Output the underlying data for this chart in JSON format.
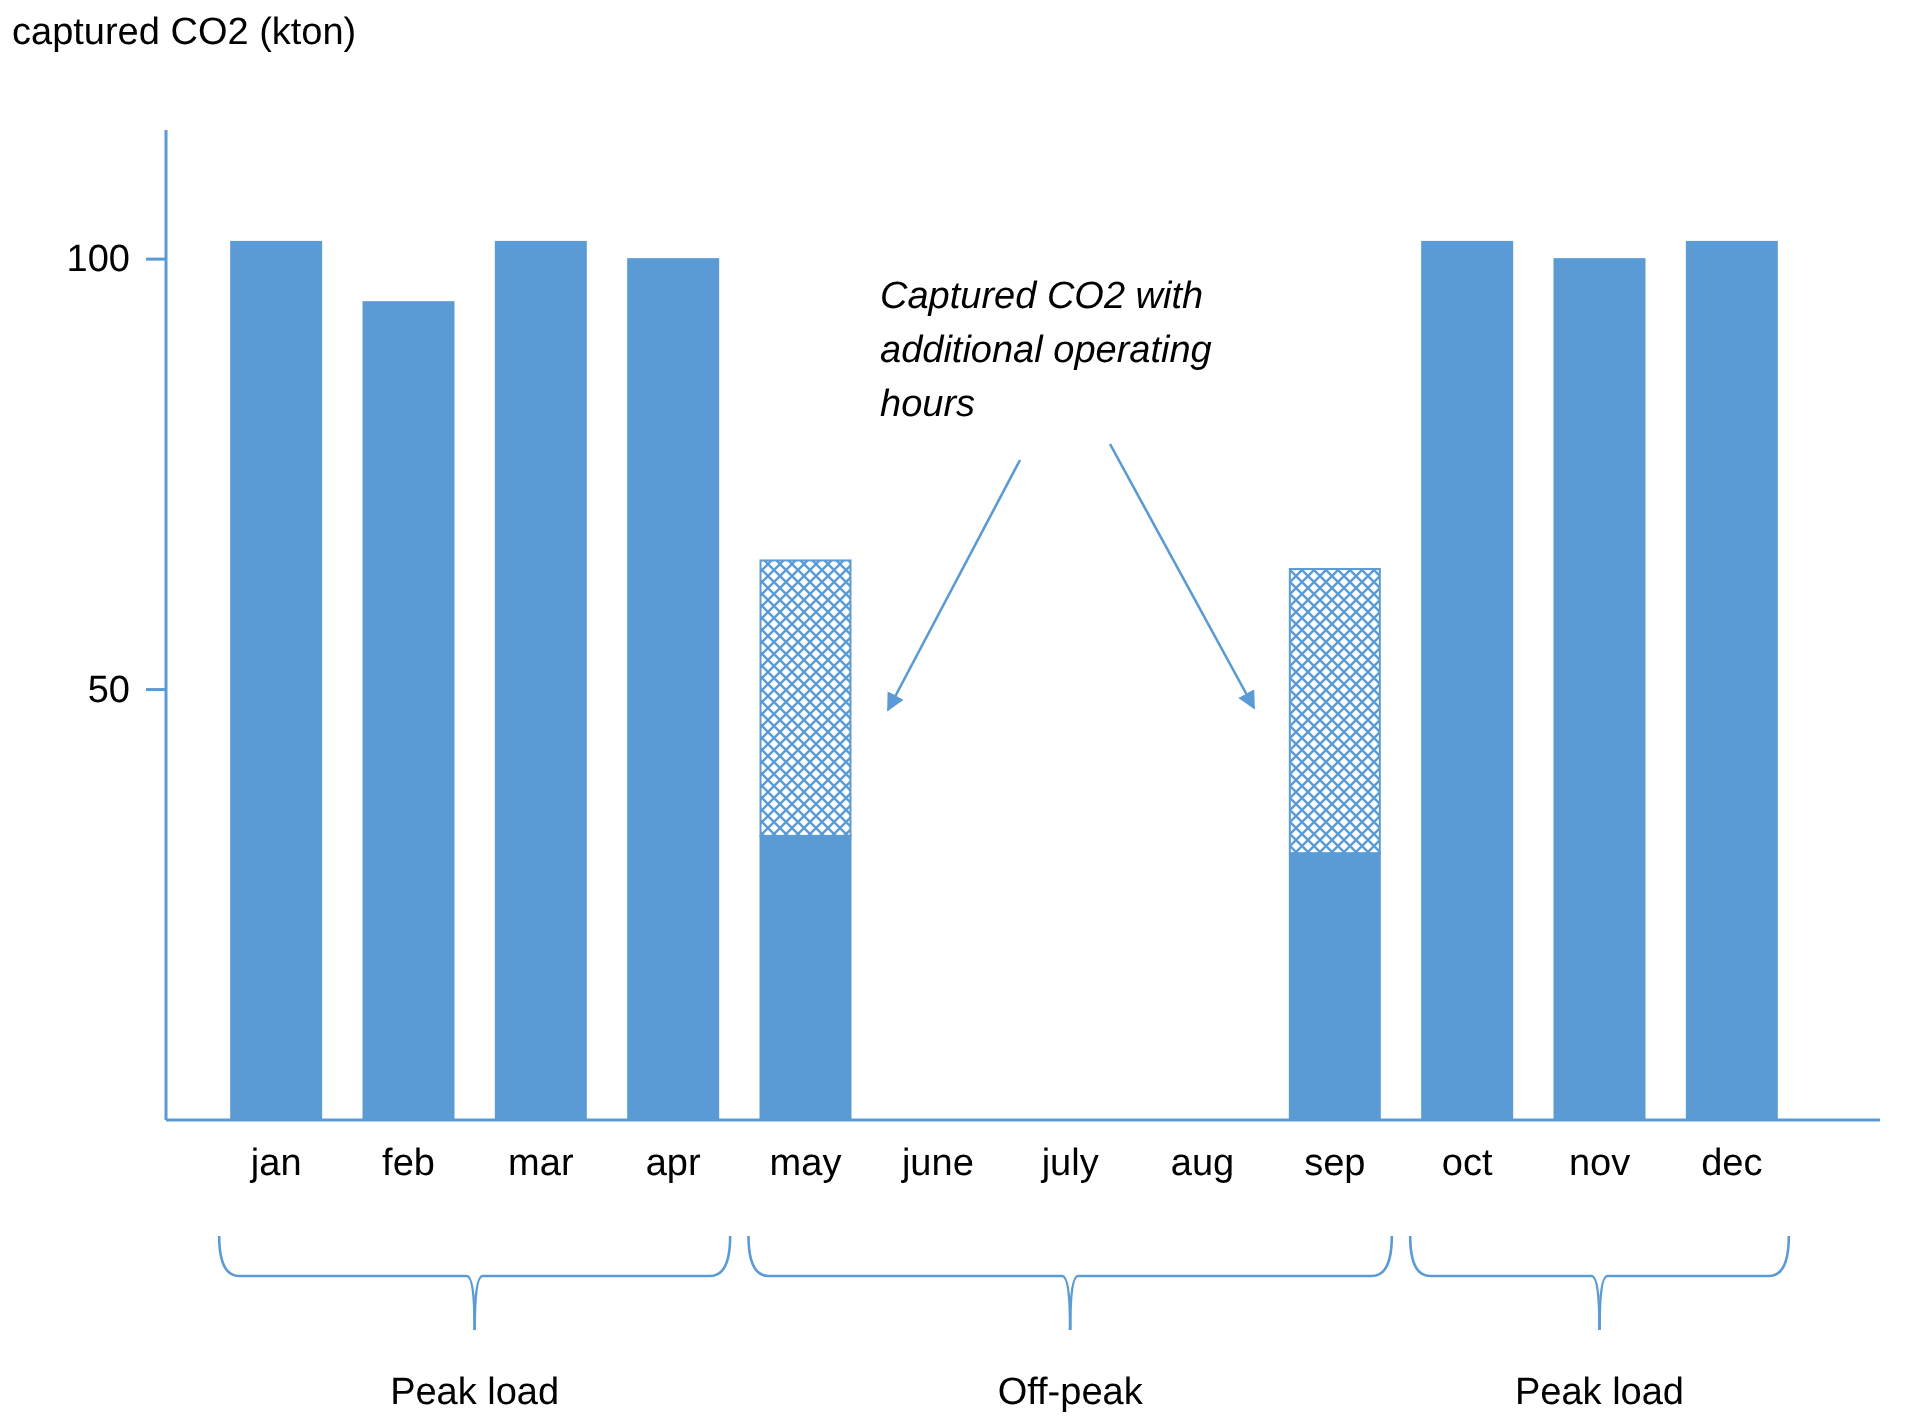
{
  "chart_data": {
    "type": "bar",
    "stacked": true,
    "ylabel": "captured CO2 (kton)",
    "categories": [
      "jan",
      "feb",
      "mar",
      "apr",
      "may",
      "june",
      "july",
      "aug",
      "sep",
      "oct",
      "nov",
      "dec"
    ],
    "series": [
      {
        "color": "#5b9bd5",
        "values": [
          102,
          95,
          102,
          100,
          33,
          null,
          null,
          null,
          31,
          102,
          100,
          102
        ]
      },
      {
        "color": "#5b9bd5",
        "values": [
          null,
          null,
          null,
          null,
          32,
          null,
          null,
          null,
          33,
          null,
          null,
          null
        ]
      }
    ],
    "ylim": [
      0,
      115
    ],
    "yticks": [
      50,
      100
    ],
    "grid": false,
    "annotations": [
      "Captured CO2 with additional operating hours",
      "Peak load",
      "Off-peak",
      "Peak load"
    ]
  }
}
